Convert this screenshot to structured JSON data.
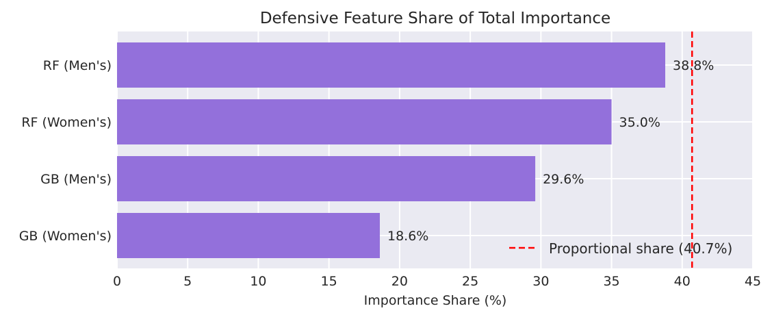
{
  "chart_data": {
    "type": "bar",
    "orientation": "horizontal",
    "title": "Defensive Feature Share of Total Importance",
    "xlabel": "Importance Share (%)",
    "ylabel": "",
    "categories": [
      "RF (Men's)",
      "RF (Women's)",
      "GB (Men's)",
      "GB (Women's)"
    ],
    "values": [
      38.8,
      35.0,
      29.6,
      18.6
    ],
    "data_labels": [
      "38.8%",
      "35.0%",
      "29.6%",
      "18.6%"
    ],
    "xlim": [
      0,
      45
    ],
    "xticks": [
      0,
      5,
      10,
      15,
      20,
      25,
      30,
      35,
      40,
      45
    ],
    "grid": true,
    "bar_color": "#9370db",
    "reference_line": {
      "value": 40.7,
      "label": "Proportional share (40.7%)",
      "color": "#ff0000",
      "style": "dashed"
    },
    "legend_placement": "lower-right",
    "background": "#eaeaf2"
  }
}
